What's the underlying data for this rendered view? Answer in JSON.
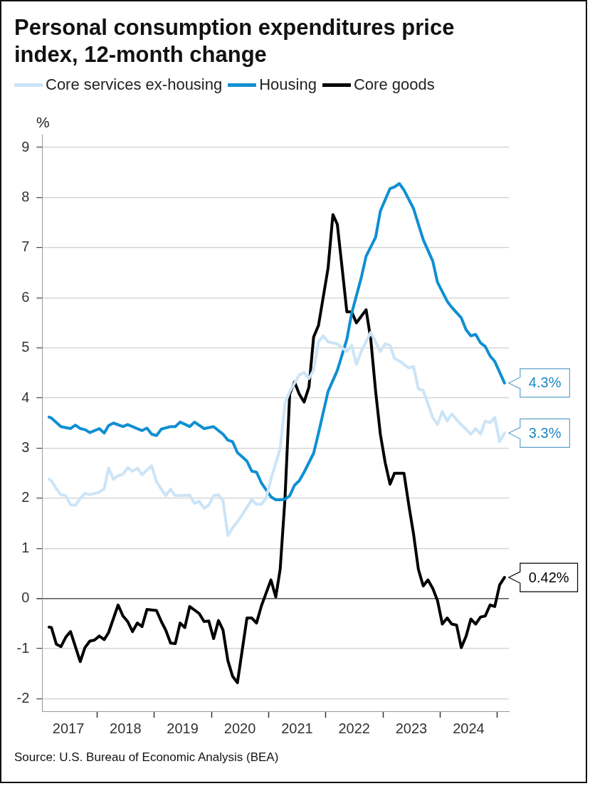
{
  "chart_data": {
    "type": "line",
    "title": "Personal consumption expenditures price index, 12-month change",
    "ylabel": "%",
    "annotations": [
      {
        "text": "4.3%",
        "x": "2025-02",
        "y": 4.3
      },
      {
        "text": "3.3%",
        "x": "2025-02",
        "y": 3.3
      },
      {
        "text": "0.42%",
        "x": "2025-02",
        "y": 0.42
      },
      "Source: U.S. Bureau of Economic Analysis (BEA)"
    ],
    "series": [
      {
        "name": "Core services ex-housing",
        "color": "#cce4f6",
        "x": [
          "2017-02-28",
          "2017-03",
          "2017-04",
          "2017-05",
          "2017-06",
          "2017-07",
          "2017-08",
          "2017-09",
          "2017-10",
          "2017-11",
          "2018-01",
          "2018-02",
          "2018-03",
          "2018-04",
          "2018-05",
          "2018-06",
          "2018-07",
          "2018-08",
          "2018-09",
          "2018-10",
          "2018-12",
          "2019-01",
          "2019-03",
          "2019-04",
          "2019-05",
          "2019-08",
          "2019-09",
          "2019-10",
          "2019-11",
          "2019-12",
          "2020-01",
          "2020-02",
          "2020-03",
          "2020-04",
          "2020-05",
          "2020-06",
          "2020-07",
          "2020-09",
          "2020-10",
          "2020-11",
          "2020-12",
          "2021-01",
          "2021-03",
          "2021-04",
          "2021-05",
          "2021-07",
          "2021-08",
          "2021-09",
          "2021-10",
          "2021-11",
          "2021-12",
          "2022-01",
          "2022-03",
          "2022-05",
          "2022-06",
          "2022-07",
          "2022-08",
          "2022-10",
          "2022-12",
          "2023-01",
          "2023-02",
          "2023-03",
          "2023-04",
          "2023-06",
          "2023-07",
          "2023-08",
          "2023-09",
          "2023-11",
          "2023-12",
          "2024-01",
          "2024-02",
          "2024-03",
          "2024-05",
          "2024-07",
          "2024-08",
          "2024-09",
          "2024-10",
          "2024-11",
          "2024-12",
          "2025-01",
          "2025-02"
        ],
        "values": [
          2.38,
          2.35,
          2.19,
          2.07,
          2.05,
          1.87,
          1.86,
          2.0,
          2.1,
          2.07,
          2.12,
          2.19,
          2.6,
          2.38,
          2.45,
          2.48,
          2.61,
          2.54,
          2.6,
          2.47,
          2.65,
          2.33,
          2.05,
          2.18,
          2.05,
          2.06,
          1.9,
          1.94,
          1.8,
          1.86,
          2.05,
          2.07,
          1.95,
          1.26,
          1.41,
          1.53,
          1.67,
          1.97,
          1.88,
          1.88,
          2.0,
          2.38,
          2.99,
          3.89,
          4.13,
          4.46,
          4.51,
          4.39,
          4.56,
          5.12,
          5.24,
          5.12,
          5.08,
          4.93,
          5.05,
          4.67,
          4.93,
          5.31,
          4.93,
          5.08,
          5.05,
          4.79,
          4.74,
          4.6,
          4.63,
          4.18,
          4.15,
          3.61,
          3.47,
          3.73,
          3.54,
          3.68,
          3.47,
          3.28,
          3.39,
          3.28,
          3.54,
          3.51,
          3.61,
          3.13,
          3.3
        ]
      },
      {
        "name": "Housing",
        "color": "#0f8fd2",
        "x": [
          "2017-02-28",
          "2017-03",
          "2017-05",
          "2017-07",
          "2017-08",
          "2017-09",
          "2017-10",
          "2017-11",
          "2018-01",
          "2018-02",
          "2018-03",
          "2018-04",
          "2018-06",
          "2018-07",
          "2018-10",
          "2018-11",
          "2018-12",
          "2019-01",
          "2019-02",
          "2019-04",
          "2019-05",
          "2019-06",
          "2019-08",
          "2019-09",
          "2019-11",
          "2020-01",
          "2020-02",
          "2020-03",
          "2020-04",
          "2020-05",
          "2020-06",
          "2020-07",
          "2020-08",
          "2020-09",
          "2020-10",
          "2020-11",
          "2020-12",
          "2021-01",
          "2021-02",
          "2021-03",
          "2021-04",
          "2021-05",
          "2021-06",
          "2021-07",
          "2021-08",
          "2021-10",
          "2021-11",
          "2022-01",
          "2022-03",
          "2022-05",
          "2022-06",
          "2022-08",
          "2022-09",
          "2022-11",
          "2022-12",
          "2023-02",
          "2023-03",
          "2023-04",
          "2023-05",
          "2023-07",
          "2023-09",
          "2023-11",
          "2023-12",
          "2024-02",
          "2024-03",
          "2024-05",
          "2024-06",
          "2024-07",
          "2024-08",
          "2024-09",
          "2024-10",
          "2024-11",
          "2024-12",
          "2025-02"
        ],
        "values": [
          3.62,
          3.6,
          3.43,
          3.39,
          3.46,
          3.39,
          3.37,
          3.31,
          3.39,
          3.3,
          3.45,
          3.5,
          3.43,
          3.47,
          3.35,
          3.4,
          3.28,
          3.25,
          3.38,
          3.43,
          3.43,
          3.52,
          3.43,
          3.52,
          3.39,
          3.43,
          3.35,
          3.28,
          3.16,
          3.13,
          2.91,
          2.83,
          2.74,
          2.54,
          2.52,
          2.31,
          2.17,
          2.03,
          1.97,
          1.97,
          1.98,
          2.05,
          2.26,
          2.35,
          2.52,
          2.9,
          3.3,
          4.13,
          4.55,
          5.17,
          5.69,
          6.4,
          6.83,
          7.21,
          7.73,
          8.18,
          8.21,
          8.28,
          8.15,
          7.78,
          7.16,
          6.73,
          6.31,
          5.93,
          5.81,
          5.6,
          5.36,
          5.24,
          5.27,
          5.1,
          5.03,
          4.84,
          4.73,
          4.3
        ]
      },
      {
        "name": "Core goods",
        "color": "#000000",
        "x": [
          "2017-02-28",
          "2017-03",
          "2017-04",
          "2017-05",
          "2017-06",
          "2017-07",
          "2017-09",
          "2017-10",
          "2017-11",
          "2017-12",
          "2018-01",
          "2018-02",
          "2018-03",
          "2018-05",
          "2018-06",
          "2018-07",
          "2018-08",
          "2018-09",
          "2018-10",
          "2018-11",
          "2019-01",
          "2019-02",
          "2019-03",
          "2019-04",
          "2019-05",
          "2019-06",
          "2019-07",
          "2019-08",
          "2019-10",
          "2019-11",
          "2019-12",
          "2020-01",
          "2020-02",
          "2020-03",
          "2020-04",
          "2020-05",
          "2020-06",
          "2020-08",
          "2020-09",
          "2020-10",
          "2020-11",
          "2021-01",
          "2021-02",
          "2021-03",
          "2021-04",
          "2021-05",
          "2021-06",
          "2021-07",
          "2021-08",
          "2021-09",
          "2021-10",
          "2021-11",
          "2022-01",
          "2022-02",
          "2022-03",
          "2022-04",
          "2022-05",
          "2022-06",
          "2022-07",
          "2022-09",
          "2022-10",
          "2022-11",
          "2022-12",
          "2023-01",
          "2023-02",
          "2023-03",
          "2023-05",
          "2023-06",
          "2023-07",
          "2023-08",
          "2023-09",
          "2023-10",
          "2023-11",
          "2023-12",
          "2024-01",
          "2024-02",
          "2024-03",
          "2024-04",
          "2024-05",
          "2024-06",
          "2024-07",
          "2024-08",
          "2024-09",
          "2024-10",
          "2024-11",
          "2024-12",
          "2025-01",
          "2025-02"
        ],
        "values": [
          -0.57,
          -0.58,
          -0.91,
          -0.96,
          -0.77,
          -0.66,
          -1.26,
          -0.98,
          -0.85,
          -0.83,
          -0.75,
          -0.82,
          -0.68,
          -0.13,
          -0.35,
          -0.46,
          -0.66,
          -0.49,
          -0.56,
          -0.22,
          -0.24,
          -0.46,
          -0.63,
          -0.89,
          -0.9,
          -0.49,
          -0.58,
          -0.16,
          -0.3,
          -0.46,
          -0.45,
          -0.8,
          -0.44,
          -0.63,
          -1.24,
          -1.55,
          -1.68,
          -0.39,
          -0.39,
          -0.49,
          -0.15,
          0.37,
          0.03,
          0.58,
          2.0,
          4.08,
          4.32,
          4.08,
          3.92,
          4.22,
          5.22,
          5.45,
          6.59,
          7.66,
          7.47,
          6.59,
          5.72,
          5.72,
          5.5,
          5.76,
          5.17,
          4.13,
          3.28,
          2.71,
          2.28,
          2.5,
          2.5,
          1.86,
          1.29,
          0.58,
          0.25,
          0.37,
          0.2,
          -0.04,
          -0.51,
          -0.39,
          -0.51,
          -0.53,
          -0.98,
          -0.75,
          -0.41,
          -0.51,
          -0.37,
          -0.35,
          -0.13,
          -0.16,
          0.27,
          0.42
        ]
      }
    ],
    "xlim": [
      "2017-01-15",
      "2025-03-15"
    ],
    "xticks": [
      {
        "value": "2017-07-01",
        "label": "2017"
      },
      {
        "value": "2018-01-01",
        "label": null
      },
      {
        "value": "2018-07-01",
        "label": "2018"
      },
      {
        "value": "2019-01-01",
        "label": null
      },
      {
        "value": "2019-07-01",
        "label": "2019"
      },
      {
        "value": "2020-01-01",
        "label": null
      },
      {
        "value": "2020-07-01",
        "label": "2020"
      },
      {
        "value": "2021-01-01",
        "label": null
      },
      {
        "value": "2021-07-01",
        "label": "2021"
      },
      {
        "value": "2022-01-01",
        "label": null
      },
      {
        "value": "2022-07-01",
        "label": "2022"
      },
      {
        "value": "2023-01-01",
        "label": null
      },
      {
        "value": "2023-07-01",
        "label": "2023"
      },
      {
        "value": "2024-01-01",
        "label": null
      },
      {
        "value": "2024-07-01",
        "label": "2024"
      },
      {
        "value": "2025-01-01",
        "label": null
      }
    ],
    "ylim": [
      -2.25,
      9.25
    ],
    "yticks": [
      -2,
      -1,
      0,
      1,
      2,
      3,
      4,
      5,
      6,
      7,
      8,
      9
    ],
    "grid": "y",
    "legend": "top left",
    "marker": "none",
    "line_style": "solid"
  }
}
